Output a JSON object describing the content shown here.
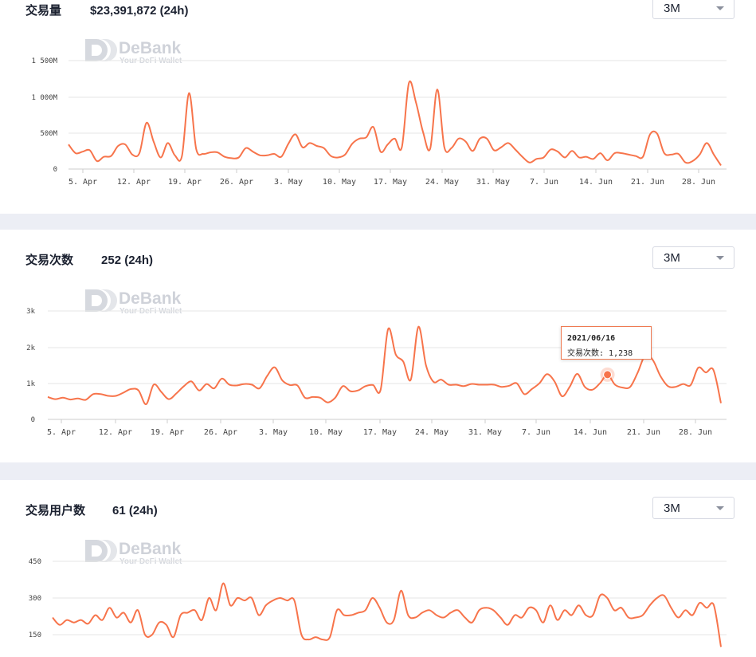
{
  "accent_color": "#f7744b",
  "watermark": {
    "brand": "DeBank",
    "tagline": "Your DeFi Wallet"
  },
  "panels": [
    {
      "title": "交易量",
      "value": "$23,391,872 (24h)",
      "range": "3M"
    },
    {
      "title": "交易次数",
      "value": "252 (24h)",
      "range": "3M"
    },
    {
      "title": "交易用户数",
      "value": "61 (24h)",
      "range": "3M"
    }
  ],
  "tooltip": {
    "date": "2021/06/16",
    "label": "交易次数",
    "value": "1,238"
  },
  "chart_data": [
    {
      "type": "line",
      "series": [
        {
          "values": [
            340,
            220,
            240,
            260,
            110,
            170,
            180,
            320,
            340,
            200,
            220,
            640,
            380,
            160,
            360,
            190,
            180,
            1050,
            280,
            210,
            230,
            230,
            170,
            150,
            160,
            290,
            240,
            190,
            190,
            210,
            170,
            350,
            480,
            300,
            360,
            320,
            290,
            180,
            160,
            200,
            350,
            420,
            440,
            580,
            240,
            340,
            420,
            300,
            1190,
            920,
            510,
            280,
            1100,
            300,
            290,
            420,
            380,
            250,
            420,
            420,
            260,
            300,
            360,
            270,
            170,
            90,
            140,
            160,
            270,
            240,
            160,
            250,
            160,
            170,
            140,
            220,
            120,
            220,
            220,
            200,
            180,
            170,
            480,
            490,
            220,
            200,
            210,
            90,
            110,
            200,
            360,
            200,
            50
          ]
        }
      ],
      "x_tick_labels": [
        "5. Apr",
        "12. Apr",
        "19. Apr",
        "26. Apr",
        "3. May",
        "10. May",
        "17. May",
        "24. May",
        "31. May",
        "7. Jun",
        "14. Jun",
        "21. Jun",
        "28. Jun"
      ],
      "y_tick_labels": [
        "0",
        "500M",
        "1 000M",
        "1 500M"
      ],
      "ylim": [
        0,
        1500000000
      ],
      "unit": "M"
    },
    {
      "type": "line",
      "series": [
        {
          "values": [
            620,
            560,
            600,
            550,
            580,
            540,
            700,
            700,
            650,
            650,
            740,
            840,
            800,
            420,
            960,
            760,
            560,
            720,
            920,
            1050,
            800,
            980,
            860,
            1130,
            960,
            940,
            980,
            960,
            860,
            1200,
            1440,
            1080,
            950,
            940,
            600,
            620,
            600,
            470,
            600,
            920,
            780,
            800,
            920,
            950,
            820,
            2500,
            1800,
            1600,
            1100,
            2560,
            1500,
            1040,
            1100,
            960,
            960,
            920,
            980,
            960,
            960,
            960,
            900,
            930,
            1000,
            700,
            840,
            1000,
            1250,
            1050,
            640,
            900,
            1260,
            900,
            820,
            1000,
            1238,
            960,
            880,
            900,
            1300,
            1780,
            1640,
            1200,
            920,
            900,
            980,
            950,
            1430,
            1300,
            1370,
            450
          ]
        }
      ],
      "x_tick_labels": [
        "5. Apr",
        "12. Apr",
        "19. Apr",
        "26. Apr",
        "3. May",
        "10. May",
        "17. May",
        "24. May",
        "31. May",
        "7. Jun",
        "14. Jun",
        "21. Jun",
        "28. Jun"
      ],
      "y_tick_labels": [
        "0",
        "1k",
        "2k",
        "3k"
      ],
      "ylim": [
        0,
        3000
      ],
      "highlight": {
        "date": "2021/06/16",
        "value": 1238
      }
    },
    {
      "type": "line",
      "series": [
        {
          "values": [
            220,
            190,
            210,
            200,
            210,
            195,
            230,
            210,
            260,
            220,
            240,
            200,
            250,
            150,
            150,
            200,
            190,
            140,
            230,
            240,
            250,
            210,
            300,
            250,
            360,
            270,
            300,
            290,
            300,
            230,
            270,
            290,
            300,
            290,
            290,
            150,
            130,
            140,
            130,
            140,
            250,
            230,
            230,
            240,
            250,
            300,
            260,
            200,
            210,
            330,
            230,
            220,
            240,
            250,
            230,
            220,
            240,
            250,
            220,
            200,
            250,
            260,
            250,
            220,
            190,
            230,
            220,
            260,
            250,
            200,
            270,
            210,
            250,
            230,
            270,
            230,
            230,
            310,
            300,
            250,
            260,
            220,
            220,
            230,
            270,
            300,
            310,
            260,
            220,
            250,
            230,
            280,
            260,
            270,
            100
          ]
        }
      ],
      "y_tick_labels": [
        "150",
        "300",
        "450"
      ],
      "ylim": [
        0,
        500
      ]
    }
  ]
}
